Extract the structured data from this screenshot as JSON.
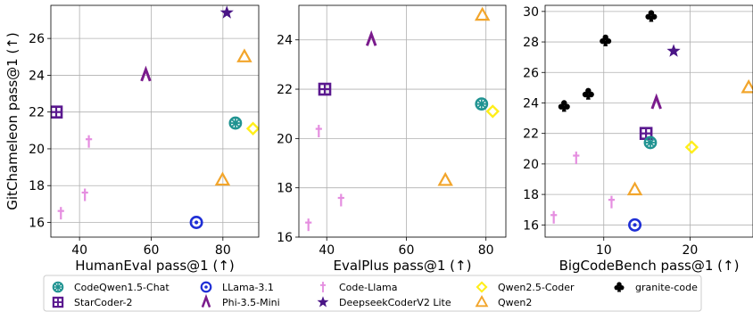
{
  "legend": {
    "entries": [
      {
        "name": "CodeQwen1.5-Chat",
        "marker": "circle-cross",
        "color": "#1f9391"
      },
      {
        "name": "LLama-3.1",
        "marker": "circle-dot",
        "color": "#1f2fd6"
      },
      {
        "name": "Code-Llama",
        "marker": "dagger",
        "color": "#e58ee0"
      },
      {
        "name": "Qwen2.5-Coder",
        "marker": "diamond",
        "color": "#ffee1a"
      },
      {
        "name": "granite-code",
        "marker": "club",
        "color": "#000000"
      },
      {
        "name": "StarCoder-2",
        "marker": "square-plus",
        "color": "#5a188f"
      },
      {
        "name": "Phi-3.5-Mini",
        "marker": "lambda",
        "color": "#7a1b8c"
      },
      {
        "name": "DeepseekCoderV2 Lite",
        "marker": "star",
        "color": "#4a1586"
      },
      {
        "name": "Qwen2",
        "marker": "triangle",
        "color": "#f2a52b"
      }
    ]
  },
  "chart_data": [
    {
      "type": "scatter",
      "xlabel": "HumanEval pass@1 (↑)",
      "ylabel": "GitChameleon pass@1 (↑)",
      "xlim": [
        32,
        90
      ],
      "ylim": [
        15.2,
        27.8
      ],
      "xticks": [
        40,
        60,
        80
      ],
      "yticks": [
        16,
        18,
        20,
        22,
        24,
        26
      ],
      "grid": true,
      "points": [
        {
          "series": "StarCoder-2",
          "x": 33.5,
          "y": 22.0
        },
        {
          "series": "Code-Llama",
          "x": 34.8,
          "y": 16.5
        },
        {
          "series": "Code-Llama",
          "x": 41.5,
          "y": 17.5
        },
        {
          "series": "Code-Llama",
          "x": 42.6,
          "y": 20.4
        },
        {
          "series": "Phi-3.5-Mini",
          "x": 58.5,
          "y": 24.0
        },
        {
          "series": "LLama-3.1",
          "x": 72.6,
          "y": 16.0
        },
        {
          "series": "Qwen2",
          "x": 79.9,
          "y": 18.3
        },
        {
          "series": "DeepseekCoderV2 Lite",
          "x": 81.1,
          "y": 27.4
        },
        {
          "series": "CodeQwen1.5-Chat",
          "x": 83.5,
          "y": 21.4
        },
        {
          "series": "Qwen2",
          "x": 86.0,
          "y": 25.0
        },
        {
          "series": "Qwen2.5-Coder",
          "x": 88.4,
          "y": 21.1
        }
      ]
    },
    {
      "type": "scatter",
      "xlabel": "EvalPlus pass@1 (↑)",
      "ylabel": "",
      "xlim": [
        33,
        85
      ],
      "ylim": [
        16,
        25.4
      ],
      "xticks": [
        40,
        60,
        80
      ],
      "yticks": [
        16,
        18,
        20,
        22,
        24
      ],
      "grid": true,
      "points": [
        {
          "series": "Code-Llama",
          "x": 35.4,
          "y": 16.5
        },
        {
          "series": "Code-Llama",
          "x": 38.0,
          "y": 20.3
        },
        {
          "series": "StarCoder-2",
          "x": 39.5,
          "y": 22.0
        },
        {
          "series": "Code-Llama",
          "x": 43.6,
          "y": 17.5
        },
        {
          "series": "Phi-3.5-Mini",
          "x": 51.2,
          "y": 24.0
        },
        {
          "series": "Qwen2",
          "x": 69.8,
          "y": 18.3
        },
        {
          "series": "CodeQwen1.5-Chat",
          "x": 78.9,
          "y": 21.4
        },
        {
          "series": "Qwen2",
          "x": 79.1,
          "y": 25.0
        },
        {
          "series": "Qwen2.5-Coder",
          "x": 81.7,
          "y": 21.1
        }
      ]
    },
    {
      "type": "scatter",
      "xlabel": "BigCodeBench pass@1 (↑)",
      "ylabel": "",
      "xlim": [
        3.2,
        27.3
      ],
      "ylim": [
        15.2,
        30.4
      ],
      "xticks": [
        10,
        20
      ],
      "yticks": [
        16,
        18,
        20,
        22,
        24,
        26,
        28,
        30
      ],
      "grid": true,
      "points": [
        {
          "series": "Code-Llama",
          "x": 4.2,
          "y": 16.5
        },
        {
          "series": "granite-code",
          "x": 5.4,
          "y": 23.8
        },
        {
          "series": "Code-Llama",
          "x": 6.8,
          "y": 20.4
        },
        {
          "series": "granite-code",
          "x": 8.2,
          "y": 24.6
        },
        {
          "series": "granite-code",
          "x": 10.2,
          "y": 28.1
        },
        {
          "series": "Code-Llama",
          "x": 10.9,
          "y": 17.5
        },
        {
          "series": "Qwen2",
          "x": 13.6,
          "y": 18.3
        },
        {
          "series": "LLama-3.1",
          "x": 13.6,
          "y": 16.0
        },
        {
          "series": "StarCoder-2",
          "x": 14.9,
          "y": 22.0
        },
        {
          "series": "CodeQwen1.5-Chat",
          "x": 15.4,
          "y": 21.4
        },
        {
          "series": "granite-code",
          "x": 15.5,
          "y": 29.7
        },
        {
          "series": "Phi-3.5-Mini",
          "x": 16.1,
          "y": 24.0
        },
        {
          "series": "DeepseekCoderV2 Lite",
          "x": 18.1,
          "y": 27.4
        },
        {
          "series": "Qwen2.5-Coder",
          "x": 20.2,
          "y": 21.1
        },
        {
          "series": "Qwen2",
          "x": 26.8,
          "y": 25.0
        }
      ]
    }
  ]
}
